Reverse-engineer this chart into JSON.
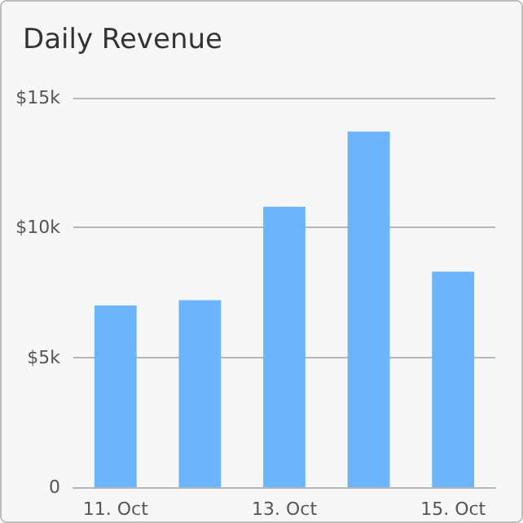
{
  "chart_data": {
    "type": "bar",
    "title": "Daily Revenue",
    "categories": [
      "11. Oct",
      null,
      "13. Oct",
      null,
      "15. Oct"
    ],
    "values": [
      7000,
      7200,
      10800,
      13700,
      8300
    ],
    "color": "#6cb4fb",
    "ylim": [
      0,
      15000
    ],
    "yticks": [
      0,
      {
        "value": 5000,
        "label": "$5k"
      },
      {
        "value": 10000,
        "label": "$10k"
      },
      {
        "value": 15000,
        "label": "$15k"
      }
    ],
    "grid": "y"
  }
}
